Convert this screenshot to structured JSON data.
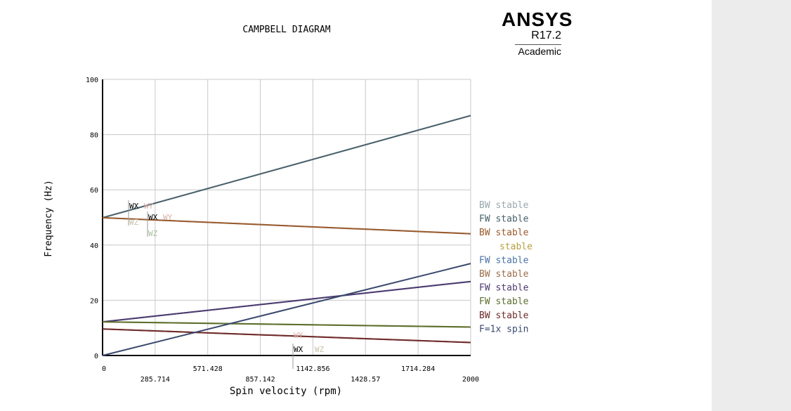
{
  "logo": {
    "name": "ANSYS",
    "version": "R17.2",
    "edition": "Academic"
  },
  "colors": {
    "grid": "#c8c8c8",
    "axis": "#000000",
    "sidebar": "#ececec"
  },
  "chart_data": {
    "type": "line",
    "title": "CAMPBELL DIAGRAM",
    "xlabel": "Spin velocity (rpm)",
    "ylabel": "Frequency (Hz)",
    "xlim": [
      0,
      2000
    ],
    "ylim": [
      0,
      100
    ],
    "x_ticks": [
      "0",
      "285.714",
      "571.428",
      "857.142",
      "1142.856",
      "1428.57",
      "1714.284",
      "2000"
    ],
    "y_ticks": [
      "0",
      "20",
      "40",
      "60",
      "80",
      "100"
    ],
    "grid": true,
    "legend_position": "right",
    "series": [
      {
        "name": "BW stable",
        "color": "#9aa8ad",
        "x": [
          0,
          2000
        ],
        "y": [
          49.9,
          44.1
        ]
      },
      {
        "name": "FW stable",
        "color": "#47606b",
        "x": [
          0,
          2000
        ],
        "y": [
          49.9,
          86.9
        ]
      },
      {
        "name": "BW stable",
        "color": "#9b5a2c",
        "x": [
          0,
          2000
        ],
        "y": [
          49.9,
          44.1
        ]
      },
      {
        "name": "stable",
        "color": "#b5a040",
        "x": [
          0,
          2000
        ],
        "y": [
          12.2,
          10.3
        ]
      },
      {
        "name": "FW stable",
        "color": "#4a74a8",
        "x": [
          0,
          2000
        ],
        "y": [
          12.2,
          26.8
        ]
      },
      {
        "name": "BW stable",
        "color": "#9b6e4a",
        "x": [
          0,
          2000
        ],
        "y": [
          9.6,
          4.7
        ]
      },
      {
        "name": "FW stable",
        "color": "#4e3a6e",
        "x": [
          0,
          2000
        ],
        "y": [
          12.2,
          26.8
        ]
      },
      {
        "name": "FW stable",
        "color": "#5b6e2e",
        "x": [
          0,
          2000
        ],
        "y": [
          12.2,
          10.3
        ]
      },
      {
        "name": "BW stable",
        "color": "#6e2a2a",
        "x": [
          0,
          2000
        ],
        "y": [
          9.6,
          4.7
        ]
      },
      {
        "name": "F=1x spin",
        "color": "#3a4a6e",
        "x": [
          0,
          2000
        ],
        "y": [
          0,
          33.3
        ]
      }
    ],
    "annotations": [
      {
        "group": "a",
        "wx": "WX",
        "wy": "WY",
        "wz": "WZ"
      },
      {
        "group": "b",
        "wx": "WX",
        "wy": "WY",
        "wz": "WZ"
      },
      {
        "group": "c",
        "wx": "WX",
        "wy": "WY",
        "wz": "WZ"
      }
    ]
  }
}
